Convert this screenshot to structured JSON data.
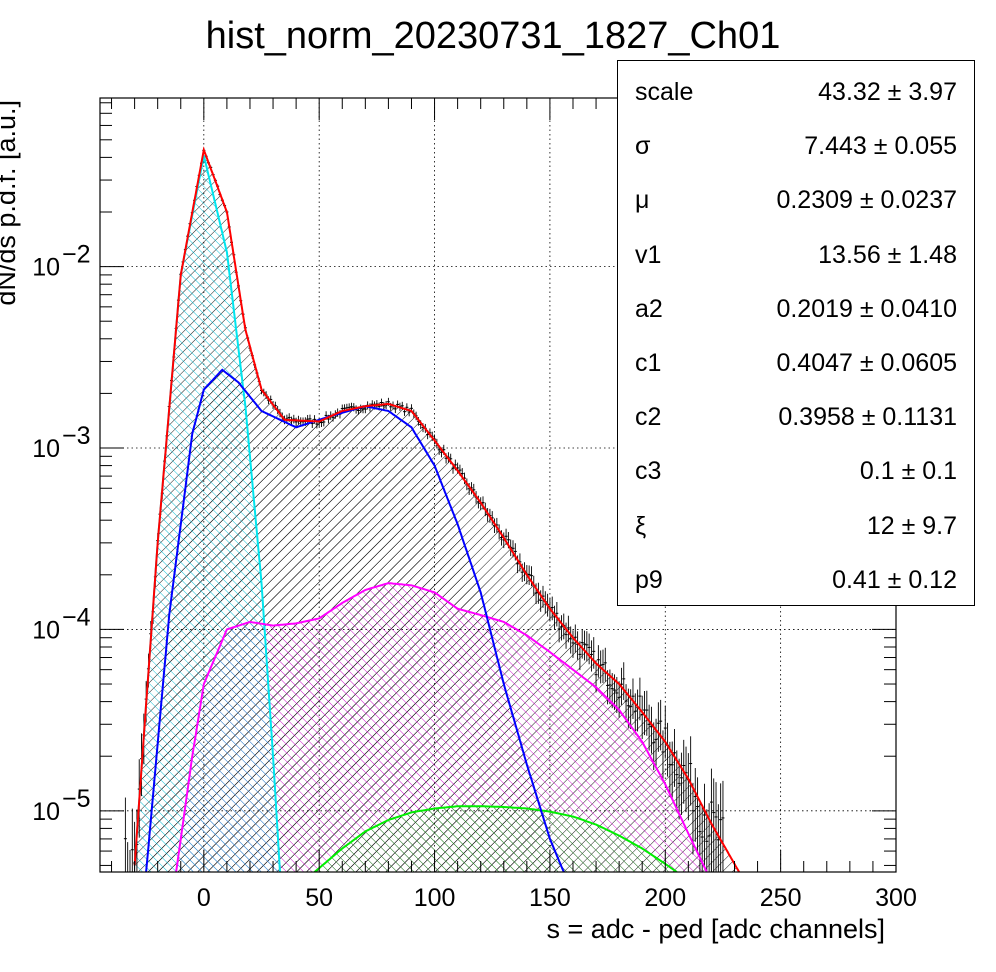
{
  "chart_data": {
    "type": "line",
    "title": "hist_norm_20230731_1827_Ch01",
    "xlabel": "s = adc - ped [adc channels]",
    "ylabel": "dN/ds p.d.f. [a.u.]",
    "xlim": [
      -45,
      300
    ],
    "ylim": [
      4.6e-06,
      0.085
    ],
    "yscale": "log",
    "grid": true,
    "x_ticks": [
      0,
      50,
      100,
      150,
      200,
      250,
      300
    ],
    "y_ticks": [
      {
        "value": 0.01,
        "base": "10",
        "exp": "−2"
      },
      {
        "value": 0.001,
        "base": "10",
        "exp": "−3"
      },
      {
        "value": 0.0001,
        "base": "10",
        "exp": "−4"
      },
      {
        "value": 1e-05,
        "base": "10",
        "exp": "−5"
      }
    ],
    "series": [
      {
        "color": "#ff0000",
        "fill": "#000000",
        "x": [
          -30,
          -20,
          -10,
          0,
          10,
          18,
          25,
          35,
          50,
          60,
          70,
          80,
          90,
          100,
          110,
          120,
          130,
          140,
          150,
          160,
          170,
          180,
          190,
          200,
          210,
          220,
          232
        ],
        "y": [
          5e-06,
          0.0003,
          0.009,
          0.044,
          0.02,
          0.0045,
          0.0021,
          0.00143,
          0.0014,
          0.0016,
          0.0017,
          0.00175,
          0.0016,
          0.0011,
          0.00075,
          0.0005,
          0.00032,
          0.0002,
          0.00013,
          9e-05,
          6.5e-05,
          5e-05,
          3.5e-05,
          2.4e-05,
          1.5e-05,
          8.5e-06,
          4.6e-06
        ]
      },
      {
        "color": "#00e5ee",
        "fill": "#00bcd4",
        "x": [
          -30,
          -20,
          -10,
          0,
          10,
          18,
          25,
          30,
          33
        ],
        "y": [
          5e-06,
          0.0003,
          0.009,
          0.041,
          0.012,
          0.0017,
          0.00018,
          2e-05,
          4.6e-06
        ]
      },
      {
        "color": "#0000ff",
        "fill": "#000000",
        "x": [
          -25,
          -15,
          -5,
          0,
          8,
          15,
          25,
          40,
          55,
          70,
          80,
          90,
          100,
          110,
          120,
          130,
          140,
          150,
          156
        ],
        "y": [
          4.6e-06,
          0.00012,
          0.0012,
          0.0021,
          0.0027,
          0.0023,
          0.0016,
          0.0013,
          0.0015,
          0.0017,
          0.0016,
          0.0013,
          0.0008,
          0.00038,
          0.00016,
          5e-05,
          1.8e-05,
          7e-06,
          4.6e-06
        ]
      },
      {
        "color": "#ff00ff",
        "fill": "#ff00ff",
        "x": [
          -12,
          -5,
          0,
          10,
          20,
          30,
          40,
          50,
          60,
          70,
          80,
          90,
          100,
          110,
          120,
          130,
          140,
          150,
          160,
          170,
          180,
          190,
          200,
          210,
          218
        ],
        "y": [
          4.6e-06,
          2e-05,
          5e-05,
          0.0001,
          0.00011,
          0.000105,
          0.000108,
          0.000115,
          0.00014,
          0.000165,
          0.00018,
          0.000175,
          0.00016,
          0.00013,
          0.00012,
          0.00011,
          9.27e-05,
          7.5e-05,
          6e-05,
          4.8e-05,
          3.6e-05,
          2.4e-05,
          1.4e-05,
          7.5e-06,
          4.6e-06
        ]
      },
      {
        "color": "#00ee00",
        "fill": "#00cc00",
        "x": [
          48,
          60,
          70,
          80,
          90,
          100,
          110,
          120,
          130,
          140,
          150,
          160,
          170,
          180,
          190,
          200,
          205
        ],
        "y": [
          4.6e-06,
          6.2e-06,
          7.7e-06,
          8.9e-06,
          9.8e-06,
          1.03e-05,
          1.06e-05,
          1.06e-05,
          1.05e-05,
          1.03e-05,
          9.9e-06,
          9.3e-06,
          8.4e-06,
          7.3e-06,
          6.2e-06,
          5.1e-06,
          4.6e-06
        ]
      }
    ],
    "stats": [
      {
        "name": "scale",
        "value": "43.32 ± 3.97"
      },
      {
        "name": "σ",
        "value": "7.443 ± 0.055"
      },
      {
        "name": "μ",
        "value": "0.2309 ± 0.0237"
      },
      {
        "name": "v1",
        "value": "13.56 ± 1.48"
      },
      {
        "name": "a2",
        "value": "0.2019 ± 0.0410"
      },
      {
        "name": "c1",
        "value": "0.4047 ± 0.0605"
      },
      {
        "name": "c2",
        "value": "0.3958 ± 0.1131"
      },
      {
        "name": "c3",
        "value": "0.1 ± 0.1"
      },
      {
        "name": "ξ",
        "value": "12 ± 9.7"
      },
      {
        "name": "p9",
        "value": "0.41 ± 0.12"
      }
    ]
  }
}
